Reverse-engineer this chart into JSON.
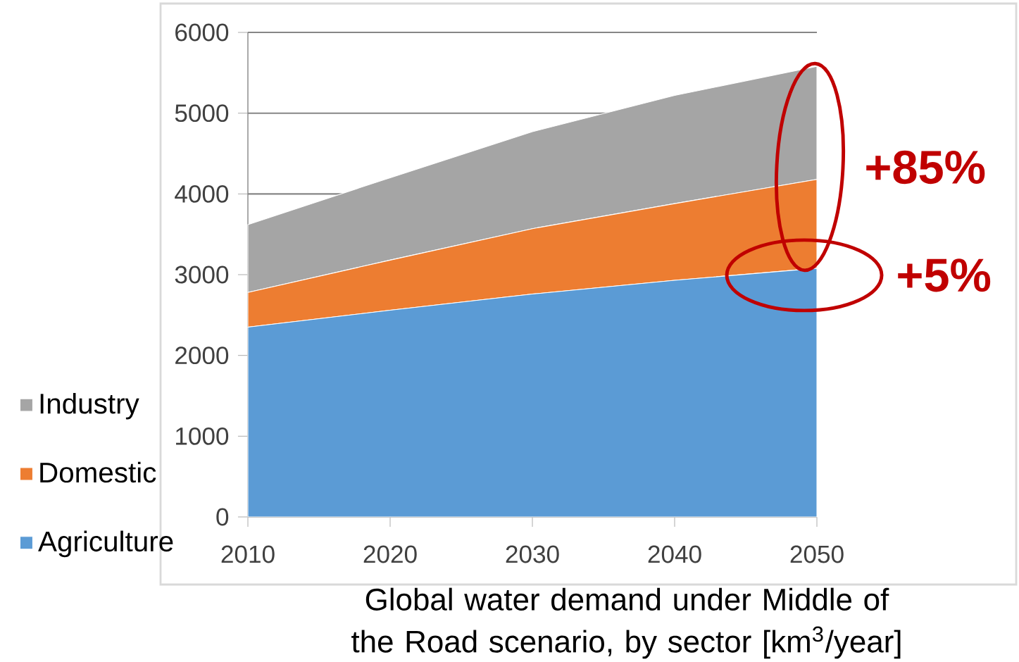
{
  "chart_data": {
    "type": "area",
    "stacked": true,
    "title": "Global water demand under Middle of the Road scenario, by sector [km$^{3}$/year]",
    "x": [
      2010,
      2020,
      2030,
      2040,
      2050
    ],
    "series": [
      {
        "name": "Agriculture",
        "color": "#5b9bd5",
        "values": [
          2350,
          2560,
          2760,
          2930,
          3080
        ]
      },
      {
        "name": "Domestic",
        "color": "#ed7d31",
        "values": [
          430,
          620,
          810,
          950,
          1100
        ]
      },
      {
        "name": "Industry",
        "color": "#a5a5a5",
        "values": [
          840,
          1020,
          1200,
          1340,
          1400
        ]
      }
    ],
    "xlim": [
      2010,
      2050
    ],
    "xticks": [
      2010,
      2020,
      2030,
      2040,
      2050
    ],
    "ylim": [
      0,
      6000
    ],
    "yticks": [
      0,
      1000,
      2000,
      3000,
      4000,
      5000,
      6000
    ],
    "grid": "y",
    "legend": "bottom left",
    "annotations": [
      "+85%",
      "+5%"
    ]
  }
}
